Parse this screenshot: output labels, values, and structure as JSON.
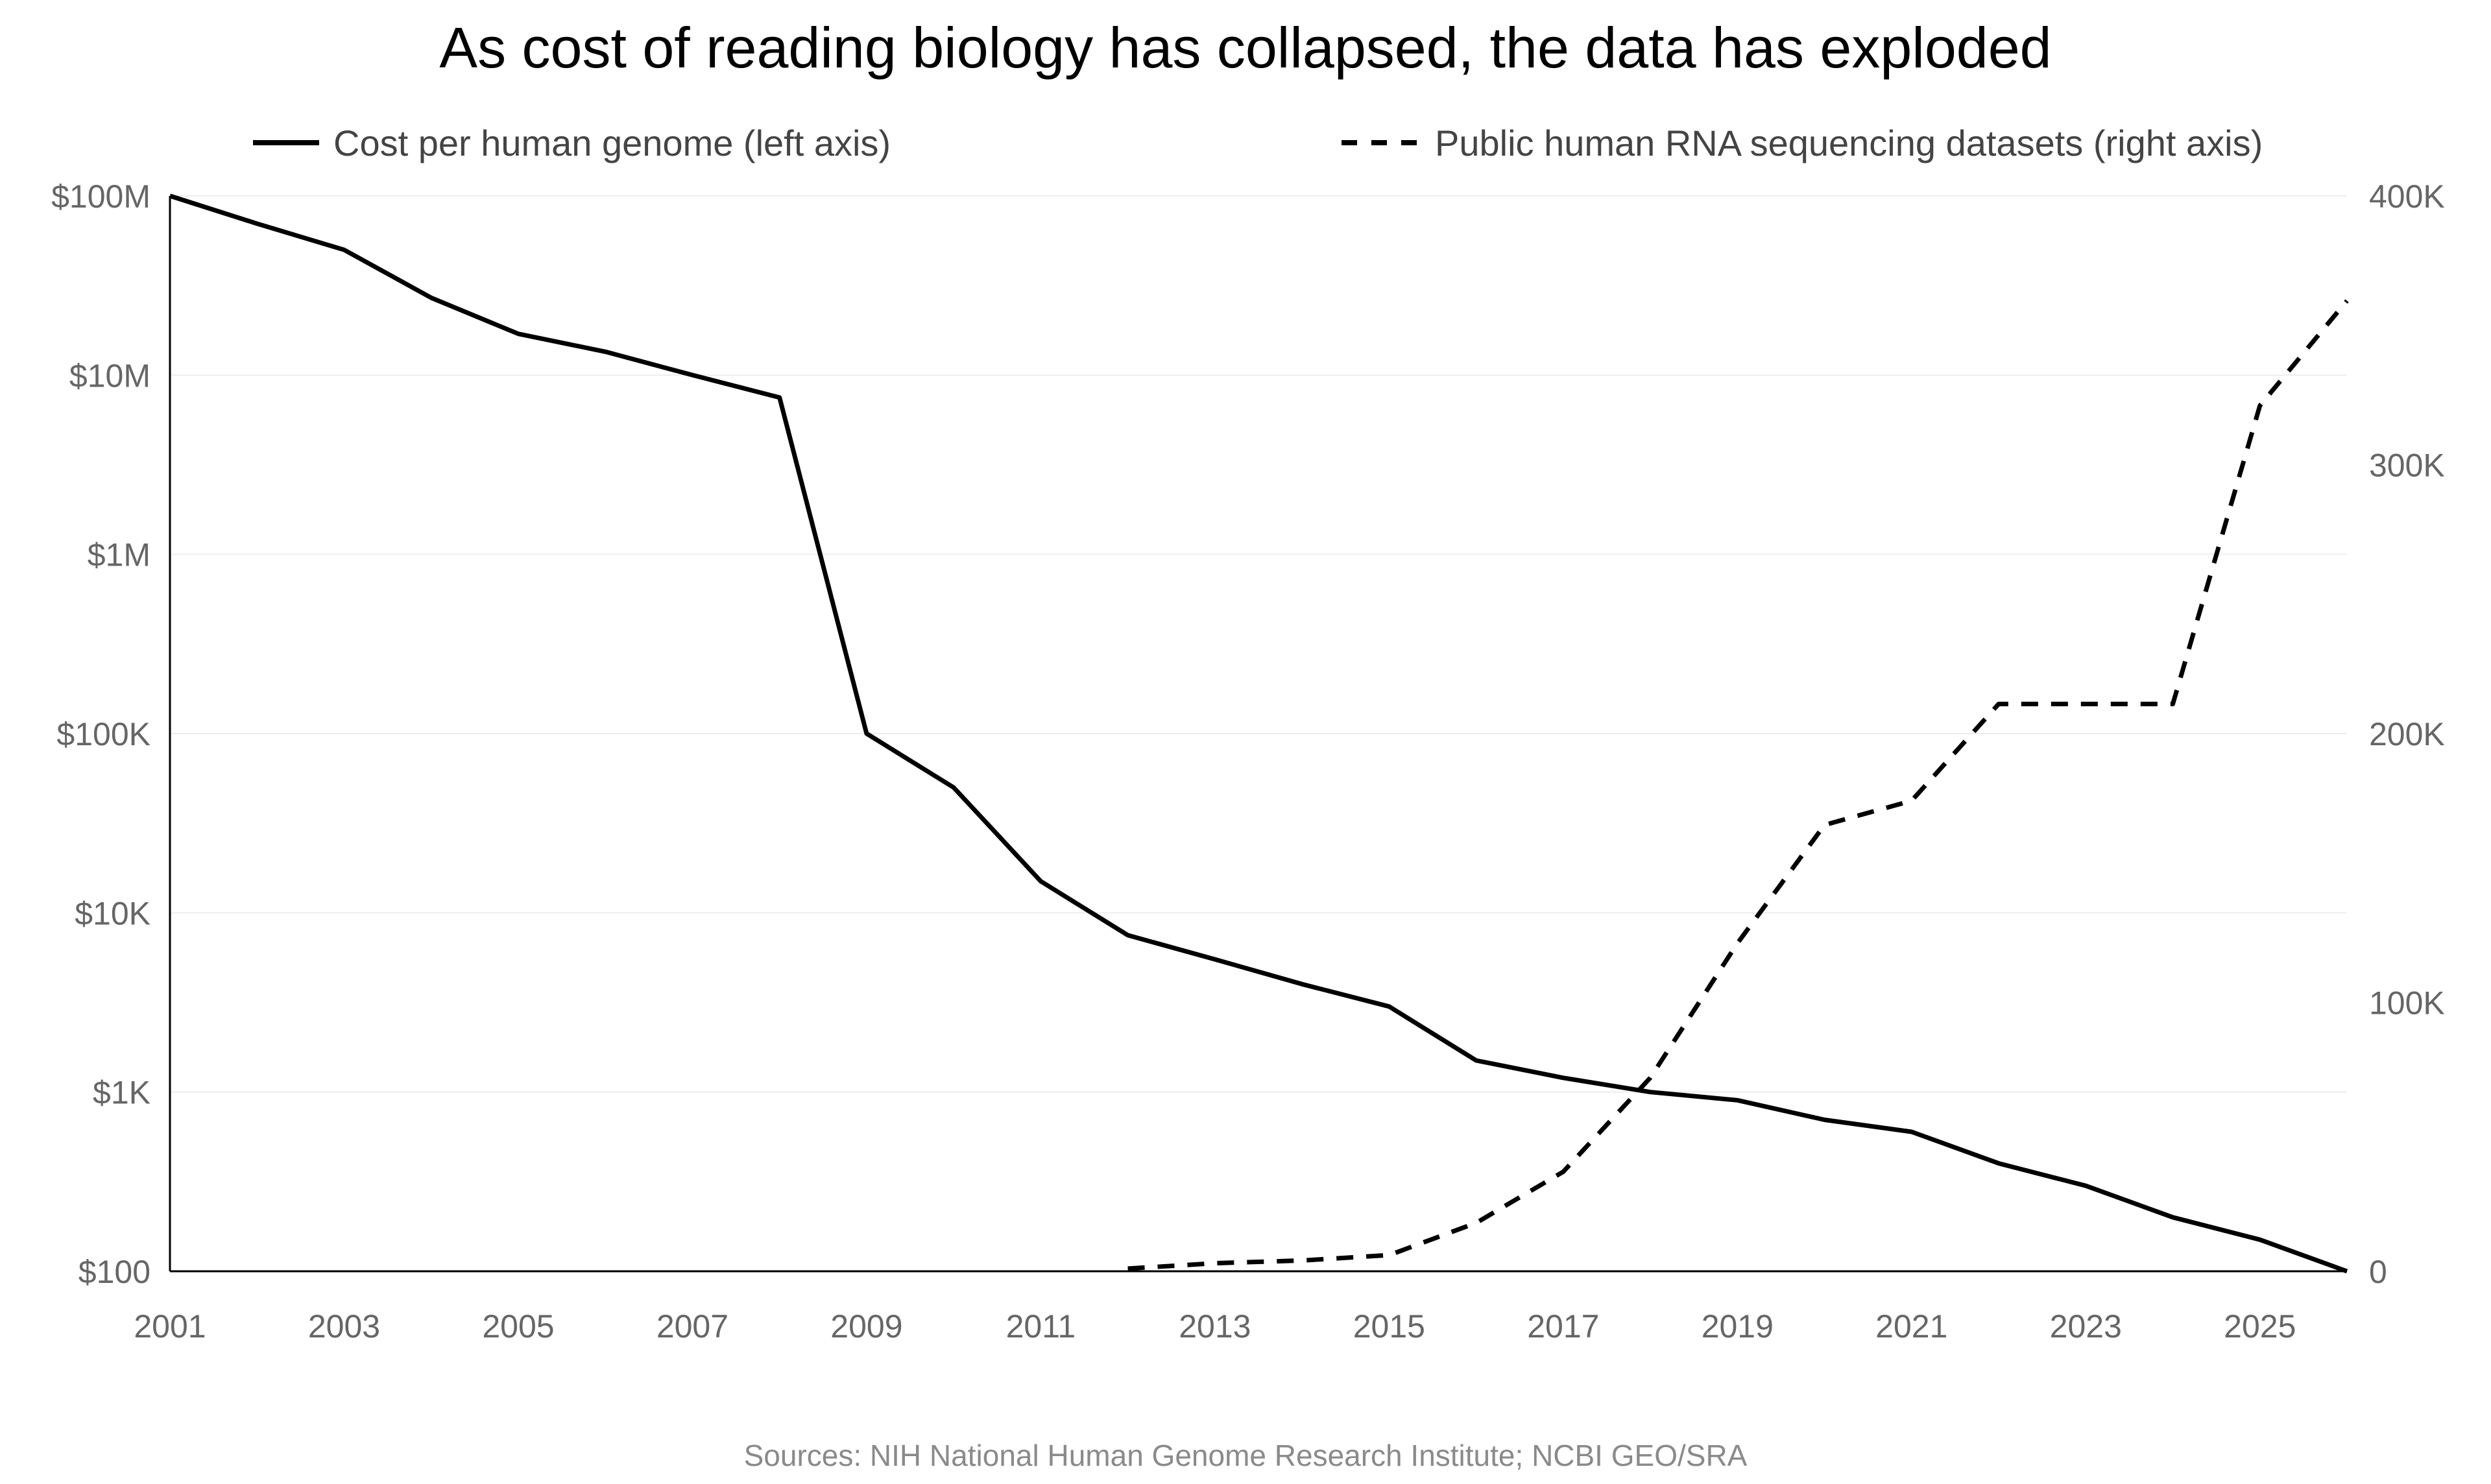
{
  "chart_data": {
    "type": "line",
    "title": "As cost of reading biology has collapsed, the data has exploded",
    "source": "Sources: NIH National Human Genome Research Institute; NCBI GEO/SRA",
    "legend_placement": "top",
    "grid": true,
    "x": {
      "range": [
        2001,
        2026
      ],
      "ticks": [
        2001,
        2003,
        2005,
        2007,
        2009,
        2011,
        2013,
        2015,
        2017,
        2019,
        2021,
        2023,
        2025
      ]
    },
    "y_left": {
      "scale": "log",
      "range": [
        100,
        100000000
      ],
      "ticks": [
        100,
        1000,
        10000,
        100000,
        1000000,
        10000000,
        100000000
      ],
      "tick_labels": [
        "$100",
        "$1K",
        "$10K",
        "$100K",
        "$1M",
        "$10M",
        "$100M"
      ]
    },
    "y_right": {
      "scale": "linear",
      "range": [
        0,
        400000
      ],
      "ticks": [
        0,
        100000,
        200000,
        300000,
        400000
      ],
      "tick_labels": [
        "0",
        "100K",
        "200K",
        "300K",
        "400K"
      ]
    },
    "series": [
      {
        "name": "Cost per human genome (left axis)",
        "axis": "left",
        "style": "solid",
        "color": "#000000",
        "points": [
          [
            2001,
            100000000
          ],
          [
            2002,
            70000000
          ],
          [
            2003,
            50000000
          ],
          [
            2004,
            27000000
          ],
          [
            2005,
            17000000
          ],
          [
            2006,
            13500000
          ],
          [
            2007,
            10000000
          ],
          [
            2008,
            7500000
          ],
          [
            2009,
            100000
          ],
          [
            2010,
            50000
          ],
          [
            2011,
            15000
          ],
          [
            2012,
            7500
          ],
          [
            2013,
            5500
          ],
          [
            2014,
            4000
          ],
          [
            2015,
            3000
          ],
          [
            2016,
            1500
          ],
          [
            2017,
            1200
          ],
          [
            2018,
            1000
          ],
          [
            2019,
            900
          ],
          [
            2020,
            700
          ],
          [
            2021,
            600
          ],
          [
            2022,
            400
          ],
          [
            2023,
            300
          ],
          [
            2024,
            200
          ],
          [
            2025,
            150
          ],
          [
            2026,
            100
          ]
        ]
      },
      {
        "name": "Public human RNA sequencing datasets (right axis)",
        "axis": "right",
        "style": "dashed",
        "color": "#000000",
        "points": [
          [
            2012,
            1000
          ],
          [
            2013,
            3000
          ],
          [
            2014,
            4000
          ],
          [
            2015,
            6000
          ],
          [
            2016,
            18000
          ],
          [
            2017,
            37000
          ],
          [
            2018,
            72000
          ],
          [
            2019,
            122000
          ],
          [
            2020,
            166000
          ],
          [
            2021,
            175000
          ],
          [
            2022,
            211000
          ],
          [
            2023,
            211000
          ],
          [
            2024,
            211000
          ],
          [
            2025,
            322000
          ],
          [
            2026,
            361000
          ]
        ]
      }
    ]
  }
}
